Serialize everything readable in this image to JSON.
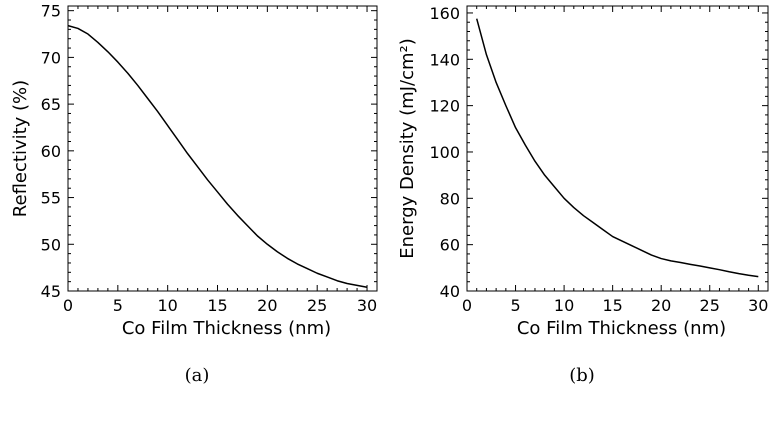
{
  "chart_data": [
    {
      "type": "line",
      "caption": "(a)",
      "xlabel": "Co Film Thickness (nm)",
      "ylabel": "Reflectivity (%)",
      "xlim": [
        0,
        31
      ],
      "ylim": [
        45,
        75.5
      ],
      "xticks": [
        0,
        5,
        10,
        15,
        20,
        25,
        30
      ],
      "yticks": [
        45,
        50,
        55,
        60,
        65,
        70,
        75
      ],
      "x": [
        0,
        1,
        2,
        3,
        4,
        5,
        6,
        7,
        8,
        9,
        10,
        11,
        12,
        13,
        14,
        15,
        16,
        17,
        18,
        19,
        20,
        21,
        22,
        23,
        24,
        25,
        26,
        27,
        28,
        29,
        30
      ],
      "y": [
        73.4,
        73.1,
        72.5,
        71.6,
        70.6,
        69.5,
        68.3,
        67.0,
        65.6,
        64.2,
        62.7,
        61.2,
        59.7,
        58.3,
        56.9,
        55.6,
        54.3,
        53.1,
        52.0,
        50.9,
        50.0,
        49.2,
        48.5,
        47.9,
        47.4,
        46.9,
        46.5,
        46.1,
        45.8,
        45.6,
        45.4
      ]
    },
    {
      "type": "line",
      "caption": "(b)",
      "xlabel": "Co Film Thickness (nm)",
      "ylabel": "Energy Density (mJ/cm²)",
      "xlim": [
        0,
        31
      ],
      "ylim": [
        40,
        163
      ],
      "xticks": [
        0,
        5,
        10,
        15,
        20,
        25,
        30
      ],
      "yticks": [
        40,
        60,
        80,
        100,
        120,
        140,
        160
      ],
      "x": [
        1,
        2,
        3,
        4,
        5,
        6,
        7,
        8,
        9,
        10,
        11,
        12,
        13,
        14,
        15,
        16,
        17,
        18,
        19,
        20,
        21,
        22,
        23,
        24,
        25,
        26,
        27,
        28,
        29,
        30
      ],
      "y": [
        157.5,
        142,
        130,
        120,
        110.5,
        103,
        96,
        90,
        85,
        80,
        76,
        72.5,
        69.5,
        66.5,
        63.5,
        61.5,
        59.5,
        57.5,
        55.5,
        54,
        53,
        52.3,
        51.5,
        50.8,
        50,
        49.2,
        48.3,
        47.5,
        46.8,
        46.2
      ]
    }
  ]
}
